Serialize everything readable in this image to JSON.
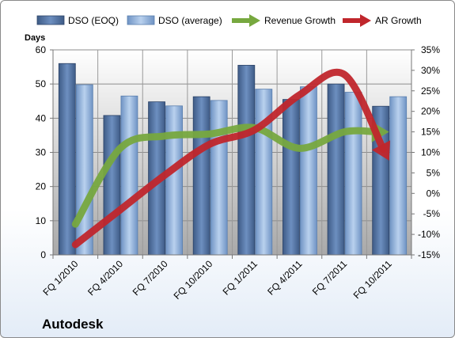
{
  "chart_data": {
    "type": "bar",
    "title": "Autodesk",
    "ylabel": "Days",
    "ylim": [
      0,
      60
    ],
    "y_ticks": [
      0,
      10,
      20,
      30,
      40,
      50,
      60
    ],
    "y2lim": [
      -15,
      35
    ],
    "y2_ticks": [
      "-15%",
      "-10%",
      "-5%",
      "0%",
      "5%",
      "10%",
      "15%",
      "20%",
      "25%",
      "30%",
      "35%"
    ],
    "legend_position": "top",
    "grid": true,
    "categories": [
      "FQ 1/2010",
      "FQ 4/2010",
      "FQ 7/2010",
      "FQ 10/2010",
      "FQ 1/2011",
      "FQ 4/2011",
      "FQ 7/2011",
      "FQ 10/2011"
    ],
    "series": [
      {
        "name": "DSO (EOQ)",
        "type": "bar",
        "axis": "left",
        "values": [
          56,
          40.8,
          44.8,
          46.3,
          55.5,
          45.5,
          50,
          43.5
        ],
        "color": "#4f6e9c"
      },
      {
        "name": "DSO (average)",
        "type": "bar",
        "axis": "left",
        "values": [
          49.8,
          46.5,
          43.6,
          45.2,
          48.5,
          49.2,
          47.6,
          46.3
        ],
        "color": "#93b3db"
      },
      {
        "name": "Revenue Growth",
        "type": "line",
        "axis": "right",
        "unit": "%",
        "values": [
          -7.5,
          11,
          14,
          14.5,
          16,
          11,
          15,
          15
        ],
        "color": "#77a83f"
      },
      {
        "name": "AR Growth",
        "type": "line",
        "axis": "right",
        "unit": "%",
        "values": [
          -12.5,
          -4,
          4.5,
          12,
          15.5,
          24,
          29,
          8
        ],
        "color": "#c0262c"
      }
    ]
  }
}
